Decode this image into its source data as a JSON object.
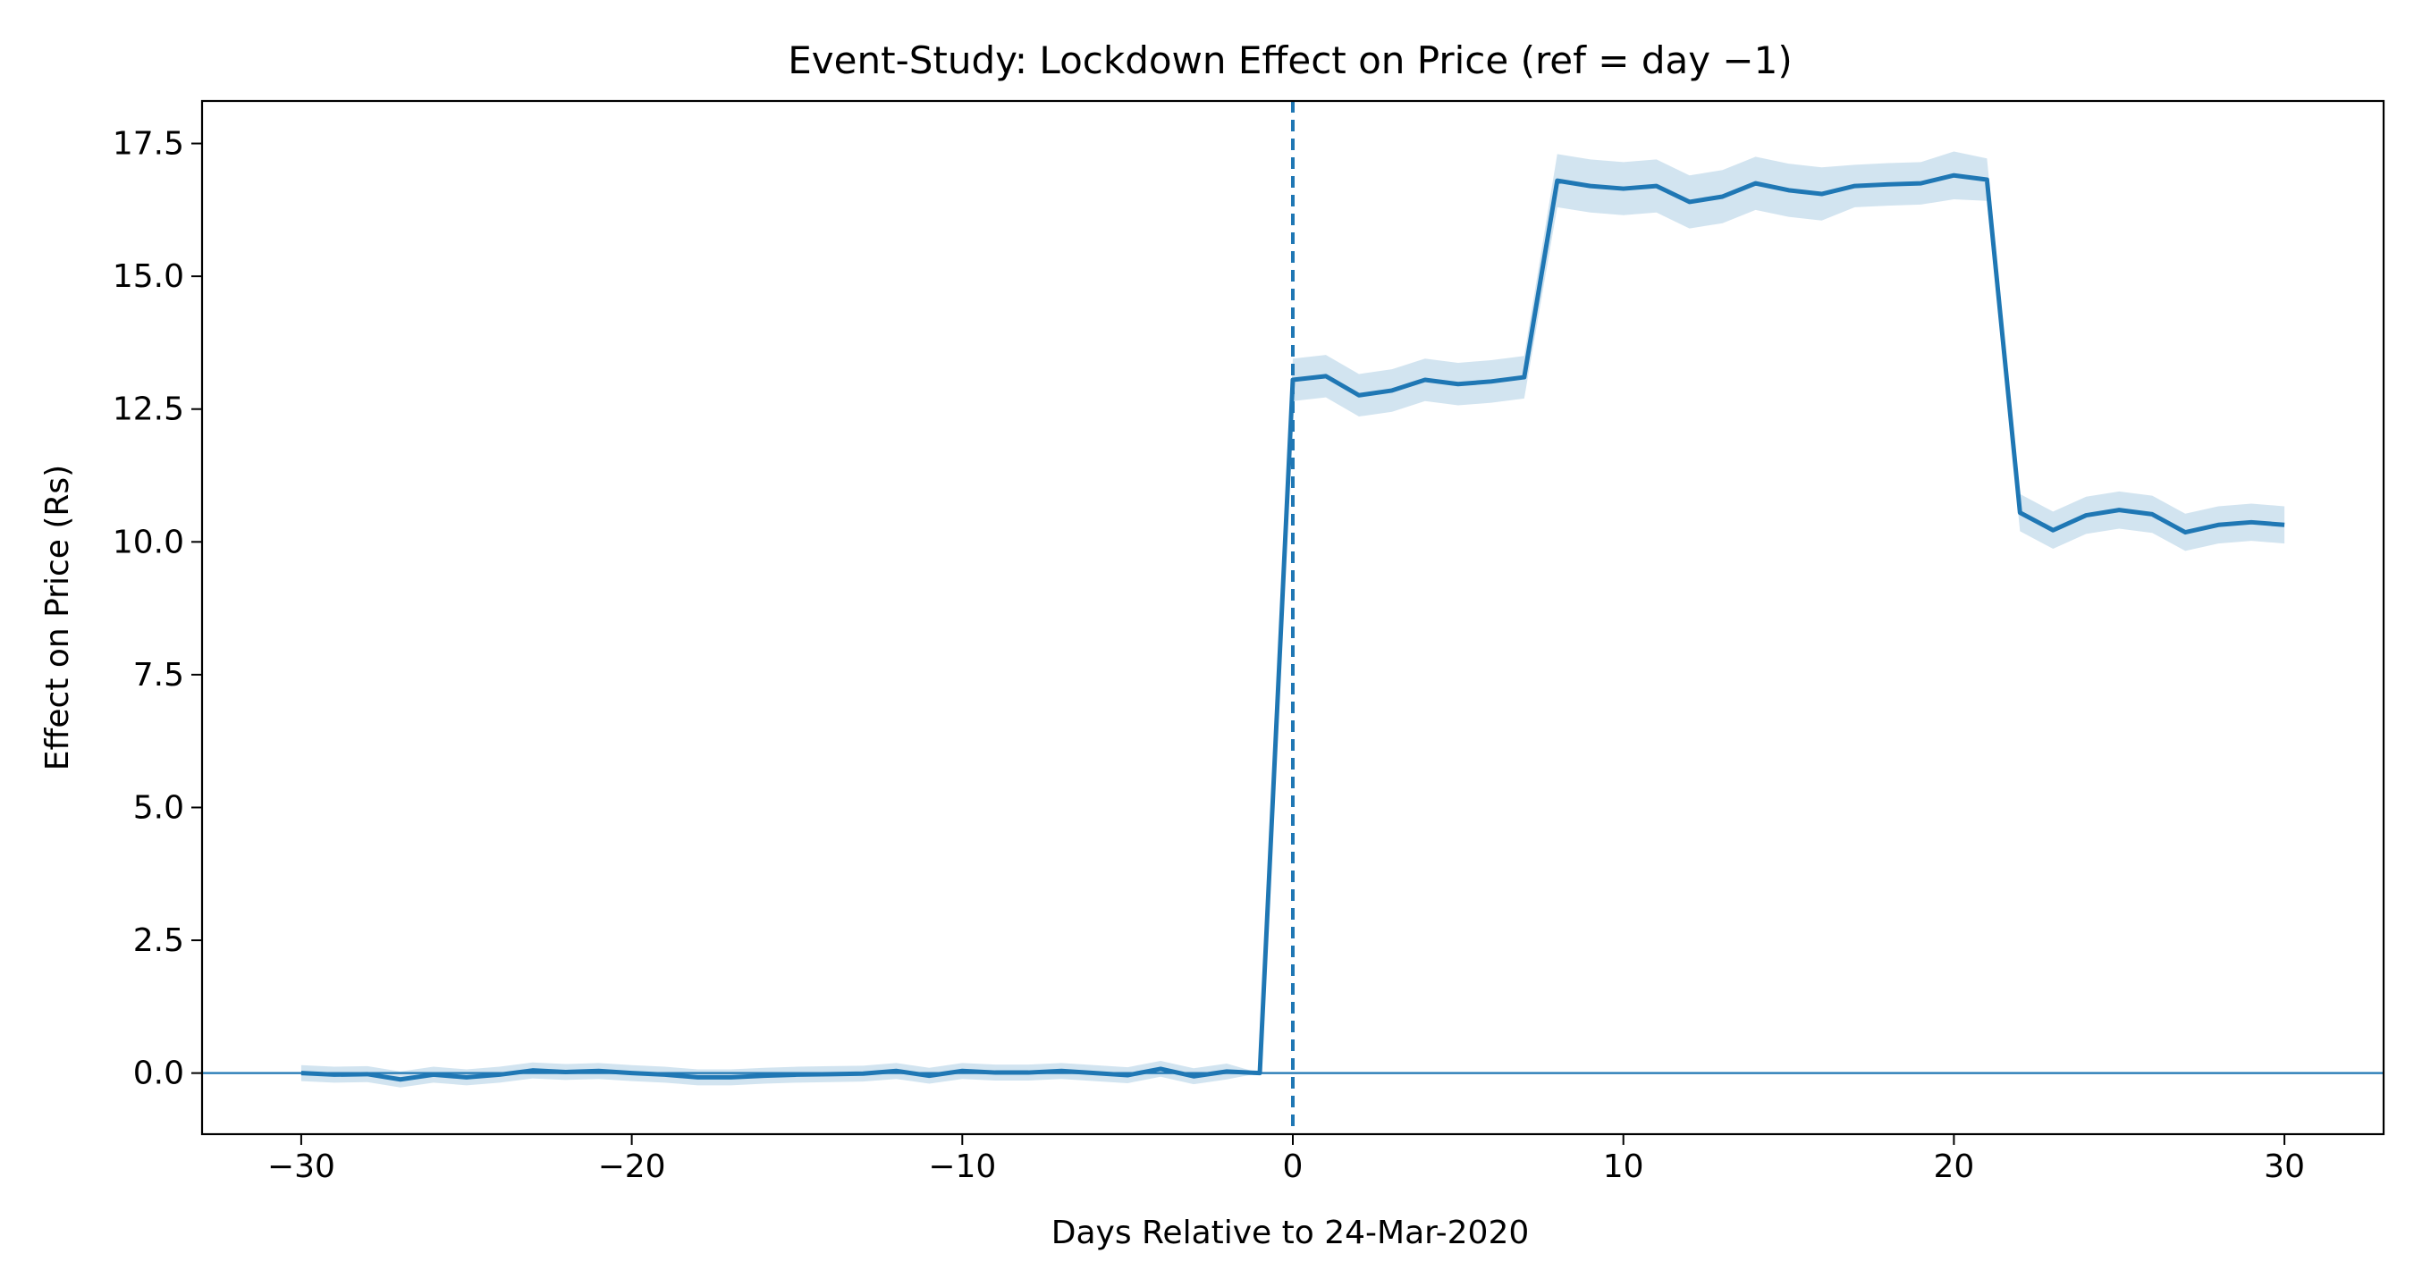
{
  "chart_data": {
    "type": "line",
    "title": "Event-Study: Lockdown Effect on Price (ref = day −1)",
    "xlabel": "Days Relative to 24-Mar-2020",
    "ylabel": "Effect on Price (Rs)",
    "xlim": [
      -33,
      33
    ],
    "ylim": [
      -1.15,
      18.3
    ],
    "x_ticks": [
      -30,
      -20,
      -10,
      0,
      10,
      20,
      30
    ],
    "x_tick_labels": [
      "−30",
      "−20",
      "−10",
      "0",
      "10",
      "20",
      "30"
    ],
    "y_ticks": [
      0,
      2.5,
      5,
      7.5,
      10,
      12.5,
      15,
      17.5
    ],
    "y_tick_labels": [
      "0.0",
      "2.5",
      "5.0",
      "7.5",
      "10.0",
      "12.5",
      "15.0",
      "17.5"
    ],
    "grid": false,
    "legend": "none",
    "event_line_x": 0,
    "zero_line_y": 0,
    "colors": {
      "line": "#1f77b4",
      "band": "#1f77b4",
      "band_opacity": 0.2
    },
    "series": [
      {
        "x": [
          -30,
          -29,
          -28,
          -27,
          -26,
          -25,
          -24,
          -23,
          -22,
          -21,
          -20,
          -19,
          -18,
          -17,
          -16,
          -15,
          -14,
          -13,
          -12,
          -11,
          -10,
          -9,
          -8,
          -7,
          -6,
          -5,
          -4,
          -3,
          -2,
          -1,
          0,
          1,
          2,
          3,
          4,
          5,
          6,
          7,
          8,
          9,
          10,
          11,
          12,
          13,
          14,
          15,
          16,
          17,
          18,
          19,
          20,
          21,
          22,
          23,
          24,
          25,
          26,
          27,
          28,
          29,
          30
        ],
        "y": [
          0.0,
          -0.03,
          -0.02,
          -0.12,
          -0.03,
          -0.08,
          -0.03,
          0.05,
          0.02,
          0.04,
          0.0,
          -0.03,
          -0.08,
          -0.08,
          -0.05,
          -0.03,
          -0.02,
          -0.01,
          0.04,
          -0.05,
          0.04,
          0.01,
          0.01,
          0.04,
          0.0,
          -0.04,
          0.08,
          -0.06,
          0.03,
          0.0,
          13.05,
          13.12,
          12.76,
          12.85,
          13.05,
          12.97,
          13.02,
          13.1,
          16.8,
          16.7,
          16.65,
          16.7,
          16.4,
          16.5,
          16.75,
          16.62,
          16.55,
          16.7,
          16.73,
          16.75,
          16.9,
          16.82,
          10.55,
          10.22,
          10.5,
          10.6,
          10.52,
          10.18,
          10.32,
          10.37,
          10.32
        ],
        "lower": [
          -0.15,
          -0.18,
          -0.17,
          -0.27,
          -0.18,
          -0.23,
          -0.18,
          -0.1,
          -0.13,
          -0.11,
          -0.15,
          -0.18,
          -0.23,
          -0.23,
          -0.2,
          -0.18,
          -0.17,
          -0.16,
          -0.11,
          -0.2,
          -0.11,
          -0.14,
          -0.14,
          -0.11,
          -0.15,
          -0.19,
          -0.07,
          -0.21,
          -0.12,
          0.0,
          12.65,
          12.72,
          12.36,
          12.45,
          12.65,
          12.57,
          12.62,
          12.7,
          16.3,
          16.2,
          16.15,
          16.2,
          15.9,
          16.0,
          16.25,
          16.12,
          16.05,
          16.3,
          16.33,
          16.35,
          16.45,
          16.42,
          10.2,
          9.87,
          10.15,
          10.25,
          10.17,
          9.83,
          9.97,
          10.02,
          9.97
        ],
        "upper": [
          0.15,
          0.12,
          0.13,
          0.03,
          0.12,
          0.07,
          0.12,
          0.2,
          0.17,
          0.19,
          0.15,
          0.12,
          0.07,
          0.07,
          0.1,
          0.12,
          0.13,
          0.14,
          0.19,
          0.1,
          0.19,
          0.16,
          0.16,
          0.19,
          0.15,
          0.11,
          0.23,
          0.09,
          0.18,
          0.0,
          13.45,
          13.52,
          13.16,
          13.25,
          13.45,
          13.37,
          13.42,
          13.5,
          17.3,
          17.2,
          17.15,
          17.2,
          16.9,
          17.0,
          17.25,
          17.12,
          17.05,
          17.1,
          17.13,
          17.15,
          17.35,
          17.22,
          10.9,
          10.57,
          10.85,
          10.95,
          10.87,
          10.53,
          10.67,
          10.72,
          10.67
        ]
      }
    ]
  }
}
